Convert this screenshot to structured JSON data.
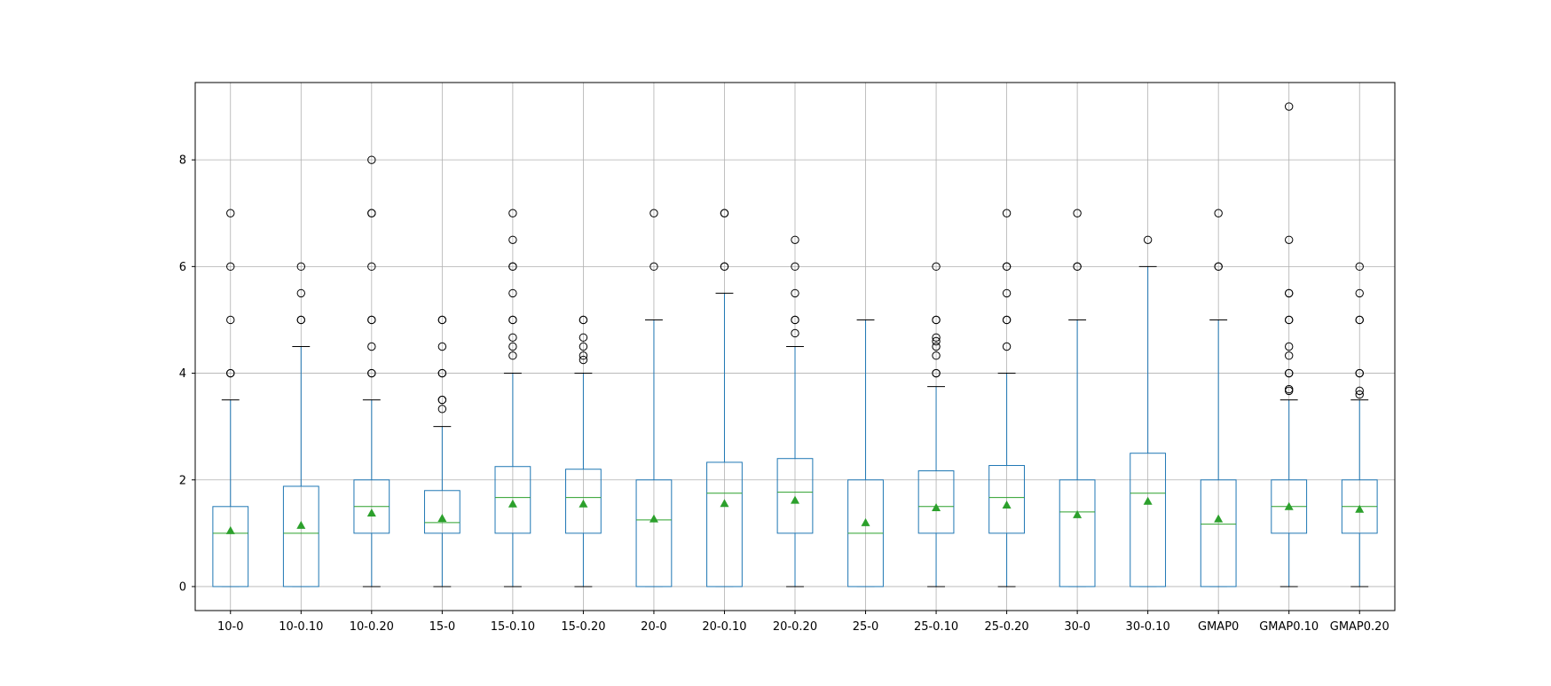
{
  "chart_data": {
    "type": "boxplot",
    "grid": true,
    "ylim": [
      -0.45,
      9.45
    ],
    "yticks": [
      0,
      2,
      4,
      6,
      8
    ],
    "ytick_labels": [
      "0",
      "2",
      "4",
      "6",
      "8"
    ],
    "colors": {
      "box": "#1f77b4",
      "median": "#2ca02c",
      "mean": "#2ca02c",
      "flier": "#000000",
      "grid": "#b0b0b0"
    },
    "categories": [
      "10-0",
      "10-0.10",
      "10-0.20",
      "15-0",
      "15-0.10",
      "15-0.20",
      "20-0",
      "20-0.10",
      "20-0.20",
      "25-0",
      "25-0.10",
      "25-0.20",
      "30-0",
      "30-0.10",
      "GMAP0",
      "GMAP0.10",
      "GMAP0.20"
    ],
    "boxes": [
      {
        "label": "10-0",
        "whislo": 0,
        "q1": 0,
        "med": 1.0,
        "q3": 1.5,
        "whishi": 3.5,
        "mean": 1.05,
        "fliers": [
          4,
          4,
          5,
          6,
          7
        ]
      },
      {
        "label": "10-0.10",
        "whislo": 0,
        "q1": 0,
        "med": 1.0,
        "q3": 1.88,
        "whishi": 4.5,
        "mean": 1.15,
        "fliers": [
          5,
          5,
          5.5,
          6
        ]
      },
      {
        "label": "10-0.20",
        "whislo": 0,
        "q1": 1.0,
        "med": 1.5,
        "q3": 2.0,
        "whishi": 3.5,
        "mean": 1.38,
        "fliers": [
          4,
          4,
          4.5,
          5,
          5,
          6,
          7,
          7,
          8
        ]
      },
      {
        "label": "15-0",
        "whislo": 0,
        "q1": 1.0,
        "med": 1.2,
        "q3": 1.8,
        "whishi": 3.0,
        "mean": 1.28,
        "fliers": [
          3.33,
          3.5,
          3.5,
          4,
          4,
          4.5,
          5,
          5
        ]
      },
      {
        "label": "15-0.10",
        "whislo": 0,
        "q1": 1.0,
        "med": 1.67,
        "q3": 2.25,
        "whishi": 4.0,
        "mean": 1.55,
        "fliers": [
          4.33,
          4.5,
          4.67,
          5,
          5,
          5.5,
          6,
          6,
          6.5,
          7
        ]
      },
      {
        "label": "15-0.20",
        "whislo": 0,
        "q1": 1.0,
        "med": 1.67,
        "q3": 2.2,
        "whishi": 4.0,
        "mean": 1.55,
        "fliers": [
          4.25,
          4.33,
          4.5,
          4.67,
          5,
          5
        ]
      },
      {
        "label": "20-0",
        "whislo": 0,
        "q1": 0,
        "med": 1.25,
        "q3": 2.0,
        "whishi": 5.0,
        "mean": 1.27,
        "fliers": [
          6,
          7
        ]
      },
      {
        "label": "20-0.10",
        "whislo": 0,
        "q1": 0,
        "med": 1.75,
        "q3": 2.33,
        "whishi": 5.5,
        "mean": 1.56,
        "fliers": [
          6,
          6,
          7,
          7
        ]
      },
      {
        "label": "20-0.20",
        "whislo": 0,
        "q1": 1.0,
        "med": 1.77,
        "q3": 2.4,
        "whishi": 4.5,
        "mean": 1.62,
        "fliers": [
          4.75,
          5,
          5,
          5.5,
          6,
          6.5
        ]
      },
      {
        "label": "25-0",
        "whislo": 0,
        "q1": 0,
        "med": 1.0,
        "q3": 2.0,
        "whishi": 5.0,
        "mean": 1.2,
        "fliers": []
      },
      {
        "label": "25-0.10",
        "whislo": 0,
        "q1": 1.0,
        "med": 1.5,
        "q3": 2.17,
        "whishi": 3.75,
        "mean": 1.48,
        "fliers": [
          4,
          4,
          4.33,
          4.5,
          4.6,
          4.67,
          5,
          5,
          6
        ]
      },
      {
        "label": "25-0.20",
        "whislo": 0,
        "q1": 1.0,
        "med": 1.67,
        "q3": 2.27,
        "whishi": 4.0,
        "mean": 1.53,
        "fliers": [
          4.5,
          5,
          5,
          5.5,
          6,
          6,
          7
        ]
      },
      {
        "label": "30-0",
        "whislo": 0,
        "q1": 0,
        "med": 1.4,
        "q3": 2.0,
        "whishi": 5.0,
        "mean": 1.35,
        "fliers": [
          6,
          6,
          7
        ]
      },
      {
        "label": "30-0.10",
        "whislo": 0,
        "q1": 0,
        "med": 1.75,
        "q3": 2.5,
        "whishi": 6.0,
        "mean": 1.6,
        "fliers": [
          6.5
        ]
      },
      {
        "label": "GMAP0",
        "whislo": 0,
        "q1": 0,
        "med": 1.17,
        "q3": 2.0,
        "whishi": 5.0,
        "mean": 1.27,
        "fliers": [
          6,
          6,
          7
        ]
      },
      {
        "label": "GMAP0.10",
        "whislo": 0,
        "q1": 1.0,
        "med": 1.5,
        "q3": 2.0,
        "whishi": 3.5,
        "mean": 1.5,
        "fliers": [
          3.67,
          3.7,
          4,
          4,
          4.33,
          4.5,
          5,
          5,
          5.5,
          5.5,
          6.5,
          9
        ]
      },
      {
        "label": "GMAP0.20",
        "whislo": 0,
        "q1": 1.0,
        "med": 1.5,
        "q3": 2.0,
        "whishi": 3.5,
        "mean": 1.45,
        "fliers": [
          3.6,
          3.67,
          4,
          4,
          5,
          5,
          5.5,
          6
        ]
      }
    ]
  }
}
